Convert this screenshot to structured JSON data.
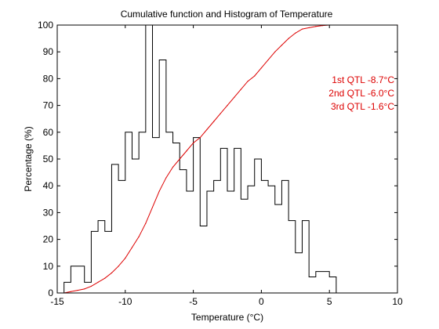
{
  "chart_data": {
    "type": "bar",
    "title": "Cumulative function and Histogram of Temperature",
    "xlabel": "Temperature (°C)",
    "ylabel": "Percentage (%)",
    "xlim": [
      -15,
      10
    ],
    "ylim": [
      0,
      100
    ],
    "x_ticks": [
      "-15",
      "-10",
      "-5",
      "0",
      "5",
      "10"
    ],
    "y_ticks": [
      "0",
      "10",
      "20",
      "30",
      "40",
      "50",
      "60",
      "70",
      "80",
      "90",
      "100"
    ],
    "grid": false,
    "series": [
      {
        "type": "stairs",
        "color": "#000000",
        "bin_edges": [
          -14.5,
          -14,
          -13.5,
          -13,
          -12.5,
          -12,
          -11.5,
          -11,
          -10.5,
          -10,
          -9.5,
          -9,
          -8.5,
          -8,
          -7.5,
          -7,
          -6.5,
          -6,
          -5.5,
          -5,
          -4.5,
          -4,
          -3.5,
          -3,
          -2.5,
          -2,
          -1.5,
          -1,
          -0.5,
          0,
          0.5,
          1,
          1.5,
          2,
          2.5,
          3,
          3.5,
          4,
          4.5,
          5,
          5.5
        ],
        "values": [
          4,
          10,
          10,
          4,
          23,
          27,
          23,
          48,
          42,
          60,
          50,
          60,
          100,
          58,
          87,
          60,
          56,
          46,
          38,
          58,
          25,
          38,
          42,
          54,
          38,
          54,
          35,
          40,
          50,
          42,
          40,
          33,
          42,
          27,
          15,
          27,
          6,
          8,
          8,
          6
        ]
      },
      {
        "type": "line",
        "color": "#dd0000",
        "x": [
          -14.5,
          -14,
          -13.5,
          -13,
          -12.5,
          -12,
          -11.5,
          -11,
          -10.5,
          -10,
          -9.5,
          -9,
          -8.5,
          -8,
          -7.5,
          -7,
          -6.5,
          -6,
          -5.5,
          -5,
          -4.5,
          -4,
          -3.5,
          -3,
          -2.5,
          -2,
          -1.5,
          -1,
          -0.5,
          0,
          0.5,
          1,
          1.5,
          2,
          2.5,
          3,
          3.5,
          4,
          4.5,
          5,
          10
        ],
        "y": [
          0,
          0.5,
          1,
          1.5,
          2.5,
          4,
          5.5,
          7.5,
          10,
          13,
          17,
          21,
          26,
          32,
          38,
          43,
          47,
          50,
          53,
          56,
          58,
          61,
          64,
          67,
          70,
          73,
          76,
          79,
          81,
          84,
          87,
          90,
          92.5,
          95,
          97,
          98.5,
          99,
          99.5,
          99.8,
          100,
          100
        ]
      }
    ],
    "annotations": [
      {
        "text": "1st QTL -8.7°C",
        "color": "#dd0000"
      },
      {
        "text": "2nd QTL -6.0°C",
        "color": "#dd0000"
      },
      {
        "text": "3rd QTL -1.6°C",
        "color": "#dd0000"
      }
    ]
  }
}
